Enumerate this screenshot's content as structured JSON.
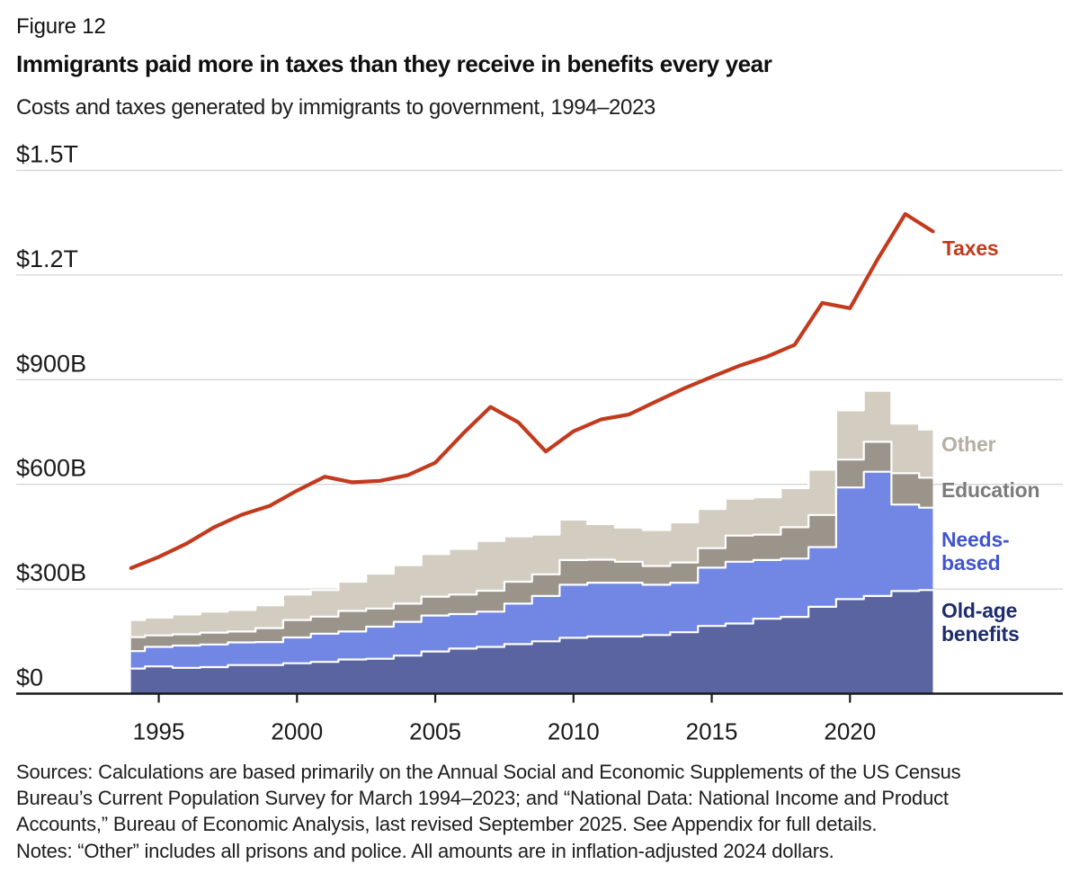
{
  "header": {
    "figure_label": "Figure 12"
  },
  "chart_data": {
    "type": "area",
    "title": "Immigrants paid more in taxes than they receive in benefits every year",
    "subtitle": "Costs and taxes generated by immigrants to government, 1994–2023",
    "unit": "US dollars (billions), inflation-adjusted 2024 dollars",
    "grid": "horizontal",
    "legend_position": "right",
    "ylim": [
      0,
      1500
    ],
    "xlim": [
      1994,
      2023
    ],
    "x": [
      1994,
      1995,
      1996,
      1997,
      1998,
      1999,
      2000,
      2001,
      2002,
      2003,
      2004,
      2005,
      2006,
      2007,
      2008,
      2009,
      2010,
      2011,
      2012,
      2013,
      2014,
      2015,
      2016,
      2017,
      2018,
      2019,
      2020,
      2021,
      2022,
      2023
    ],
    "x_tick_years": [
      1995,
      2000,
      2005,
      2010,
      2015,
      2020
    ],
    "y_ticks": [
      {
        "value": 0,
        "label": "$0"
      },
      {
        "value": 300,
        "label": "$300B"
      },
      {
        "value": 600,
        "label": "$600B"
      },
      {
        "value": 900,
        "label": "$900B"
      },
      {
        "value": 1200,
        "label": "$1.2T"
      },
      {
        "value": 1500,
        "label": "$1.5T"
      }
    ],
    "stacked_series": [
      {
        "name": "Old-age benefits",
        "color": "#5a64a1",
        "label_color": "#1d2c6f",
        "values": [
          72,
          78,
          74,
          76,
          82,
          82,
          87,
          91,
          98,
          100,
          109,
          121,
          129,
          134,
          142,
          150,
          160,
          164,
          164,
          168,
          176,
          194,
          201,
          215,
          220,
          249,
          271,
          280,
          294,
          297
        ]
      },
      {
        "name": "Needs-based",
        "color": "#7286e4",
        "label_color": "#4355cb",
        "values": [
          50,
          56,
          64,
          65,
          65,
          66,
          74,
          81,
          80,
          92,
          97,
          103,
          99,
          101,
          116,
          130,
          152,
          154,
          154,
          144,
          142,
          167,
          177,
          168,
          167,
          171,
          320,
          356,
          248,
          236
        ]
      },
      {
        "name": "Education",
        "color": "#9b948b",
        "label_color": "#7b7b7b",
        "values": [
          40,
          33,
          32,
          34,
          31,
          40,
          50,
          49,
          59,
          52,
          52,
          54,
          56,
          60,
          63,
          62,
          71,
          66,
          60,
          54,
          58,
          56,
          75,
          73,
          90,
          92,
          80,
          86,
          90,
          86
        ]
      },
      {
        "name": "Other",
        "color": "#d3ccc1",
        "label_color": "#b7aea2",
        "values": [
          49,
          51,
          57,
          60,
          62,
          65,
          73,
          76,
          84,
          100,
          110,
          122,
          131,
          143,
          130,
          114,
          116,
          102,
          98,
          103,
          115,
          112,
          106,
          107,
          112,
          130,
          141,
          146,
          142,
          138
        ]
      }
    ],
    "line_series": {
      "name": "Taxes",
      "color": "#c23b1e",
      "values": [
        360,
        392,
        430,
        477,
        513,
        538,
        582,
        622,
        606,
        610,
        626,
        662,
        745,
        822,
        778,
        694,
        752,
        786,
        800,
        838,
        875,
        908,
        940,
        966,
        1000,
        1120,
        1105,
        1245,
        1375,
        1325
      ]
    }
  },
  "legend": {
    "taxes": "Taxes",
    "other": "Other",
    "education": "Education",
    "needs_based": "Needs-\nbased",
    "old_age": "Old-age\nbenefits"
  },
  "footer": {
    "sources": "Sources: Calculations are based primarily on the Annual Social and Economic Supplements of the US Census\nBureau’s Current Population Survey for March 1994–2023; and “National Data: National Income and Product\nAccounts,” Bureau of Economic Analysis, last revised September 2025. See Appendix for full details.",
    "notes": "Notes: “Other” includes all prisons and police. All amounts are in inflation-adjusted 2024 dollars."
  },
  "colors": {
    "axis": "#1a1a1a",
    "gridline": "#d4d4d4",
    "separator": "#ffffff",
    "text": "#1a1a1a",
    "background": "#ffffff"
  }
}
